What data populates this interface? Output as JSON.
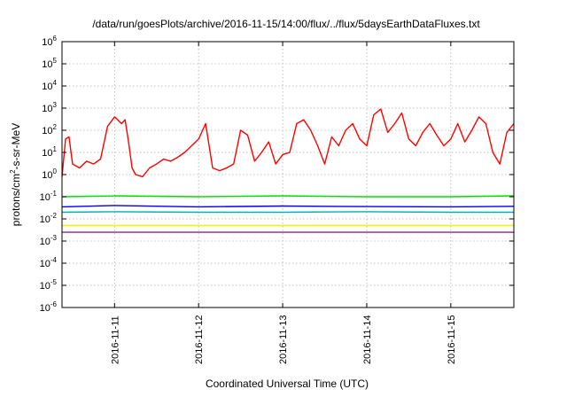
{
  "chart_data": {
    "type": "line",
    "title": "/data/run/goesPlots/archive/2016-11-15/14:00/flux/../flux/5daysEarthDataFluxes.txt",
    "xlabel": "Coordinated Universal Time (UTC)",
    "ylabel": {
      "base": "protons/cm",
      "sup": "2",
      "rest": "-s-sr-MeV"
    },
    "yscale": "log",
    "ylim": [
      1e-06,
      1000000.0
    ],
    "xlim": [
      "2016-11-10 09:00",
      "2016-11-15 18:00"
    ],
    "grid": true,
    "x_ticks": [
      "2016-11-11",
      "2016-11-12",
      "2016-11-13",
      "2016-11-14",
      "2016-11-15"
    ],
    "y_ticks": [
      {
        "value": 1e-06,
        "base": "10",
        "exp": "-6"
      },
      {
        "value": 1e-05,
        "base": "10",
        "exp": "-5"
      },
      {
        "value": 0.0001,
        "base": "10",
        "exp": "-4"
      },
      {
        "value": 0.001,
        "base": "10",
        "exp": "-3"
      },
      {
        "value": 0.01,
        "base": "10",
        "exp": "-2"
      },
      {
        "value": 0.1,
        "base": "10",
        "exp": "-1"
      },
      {
        "value": 1,
        "base": "10",
        "exp": "0"
      },
      {
        "value": 10,
        "base": "10",
        "exp": "1"
      },
      {
        "value": 100,
        "base": "10",
        "exp": "2"
      },
      {
        "value": 1000,
        "base": "10",
        "exp": "3"
      },
      {
        "value": 10000,
        "base": "10",
        "exp": "4"
      },
      {
        "value": 100000,
        "base": "10",
        "exp": "5"
      },
      {
        "value": 1000000,
        "base": "10",
        "exp": "6"
      }
    ],
    "series": [
      {
        "color": "#ff0000",
        "x": [
          "2016-11-10 09:00",
          "2016-11-10 10:00",
          "2016-11-10 11:00",
          "2016-11-10 12:00",
          "2016-11-10 14:00",
          "2016-11-10 16:00",
          "2016-11-10 18:00",
          "2016-11-10 20:00",
          "2016-11-10 22:00",
          "2016-11-11 00:00",
          "2016-11-11 02:00",
          "2016-11-11 03:00",
          "2016-11-11 04:00",
          "2016-11-11 05:00",
          "2016-11-11 06:00",
          "2016-11-11 08:00",
          "2016-11-11 10:00",
          "2016-11-11 12:00",
          "2016-11-11 14:00",
          "2016-11-11 16:00",
          "2016-11-11 18:00",
          "2016-11-11 20:00",
          "2016-11-11 22:00",
          "2016-11-12 00:00",
          "2016-11-12 02:00",
          "2016-11-12 04:00",
          "2016-11-12 06:00",
          "2016-11-12 08:00",
          "2016-11-12 10:00",
          "2016-11-12 12:00",
          "2016-11-12 14:00",
          "2016-11-12 16:00",
          "2016-11-12 18:00",
          "2016-11-12 20:00",
          "2016-11-12 22:00",
          "2016-11-13 00:00",
          "2016-11-13 02:00",
          "2016-11-13 04:00",
          "2016-11-13 06:00",
          "2016-11-13 08:00",
          "2016-11-13 10:00",
          "2016-11-13 12:00",
          "2016-11-13 14:00",
          "2016-11-13 16:00",
          "2016-11-13 18:00",
          "2016-11-13 20:00",
          "2016-11-13 22:00",
          "2016-11-14 00:00",
          "2016-11-14 02:00",
          "2016-11-14 04:00",
          "2016-11-14 06:00",
          "2016-11-14 08:00",
          "2016-11-14 10:00",
          "2016-11-14 12:00",
          "2016-11-14 14:00",
          "2016-11-14 16:00",
          "2016-11-14 18:00",
          "2016-11-14 20:00",
          "2016-11-14 22:00",
          "2016-11-15 00:00",
          "2016-11-15 02:00",
          "2016-11-15 04:00",
          "2016-11-15 06:00",
          "2016-11-15 08:00",
          "2016-11-15 10:00",
          "2016-11-15 12:00",
          "2016-11-15 14:00",
          "2016-11-15 16:00",
          "2016-11-15 18:00"
        ],
        "y": [
          0.8,
          40,
          50,
          3,
          2,
          4,
          3,
          5,
          150,
          400,
          200,
          300,
          30,
          2,
          1,
          0.8,
          2,
          3,
          5,
          4,
          6,
          10,
          20,
          40,
          200,
          2,
          1.5,
          2,
          3,
          100,
          60,
          4,
          10,
          30,
          3,
          8,
          10,
          200,
          300,
          100,
          20,
          3,
          50,
          20,
          100,
          200,
          40,
          20,
          500,
          900,
          80,
          200,
          600,
          40,
          20,
          80,
          200,
          60,
          20,
          40,
          200,
          30,
          100,
          400,
          200,
          10,
          3,
          80,
          200
        ]
      },
      {
        "color": "#00e000",
        "x": [
          "2016-11-10 09:00",
          "2016-11-11 00:00",
          "2016-11-12 00:00",
          "2016-11-13 00:00",
          "2016-11-14 00:00",
          "2016-11-15 00:00",
          "2016-11-15 18:00"
        ],
        "y": [
          0.1,
          0.11,
          0.1,
          0.11,
          0.1,
          0.1,
          0.11
        ]
      },
      {
        "color": "#0000ee",
        "x": [
          "2016-11-10 09:00",
          "2016-11-11 00:00",
          "2016-11-12 00:00",
          "2016-11-13 00:00",
          "2016-11-14 00:00",
          "2016-11-15 00:00",
          "2016-11-15 18:00"
        ],
        "y": [
          0.035,
          0.04,
          0.035,
          0.038,
          0.036,
          0.035,
          0.037
        ]
      },
      {
        "color": "#00b0b0",
        "x": [
          "2016-11-10 09:00",
          "2016-11-11 00:00",
          "2016-11-12 00:00",
          "2016-11-13 00:00",
          "2016-11-14 00:00",
          "2016-11-15 00:00",
          "2016-11-15 18:00"
        ],
        "y": [
          0.02,
          0.021,
          0.02,
          0.02,
          0.021,
          0.02,
          0.02
        ]
      },
      {
        "color": "#f0f000",
        "x": [
          "2016-11-10 09:00",
          "2016-11-11 00:00",
          "2016-11-12 00:00",
          "2016-11-13 00:00",
          "2016-11-14 00:00",
          "2016-11-15 00:00",
          "2016-11-15 18:00"
        ],
        "y": [
          0.005,
          0.005,
          0.005,
          0.005,
          0.005,
          0.005,
          0.005
        ]
      },
      {
        "color": "#902090",
        "x": [
          "2016-11-10 09:00",
          "2016-11-11 00:00",
          "2016-11-12 00:00",
          "2016-11-13 00:00",
          "2016-11-14 00:00",
          "2016-11-15 00:00",
          "2016-11-15 18:00"
        ],
        "y": [
          0.0025,
          0.0025,
          0.0025,
          0.0025,
          0.0025,
          0.0025,
          0.0025
        ]
      }
    ]
  }
}
